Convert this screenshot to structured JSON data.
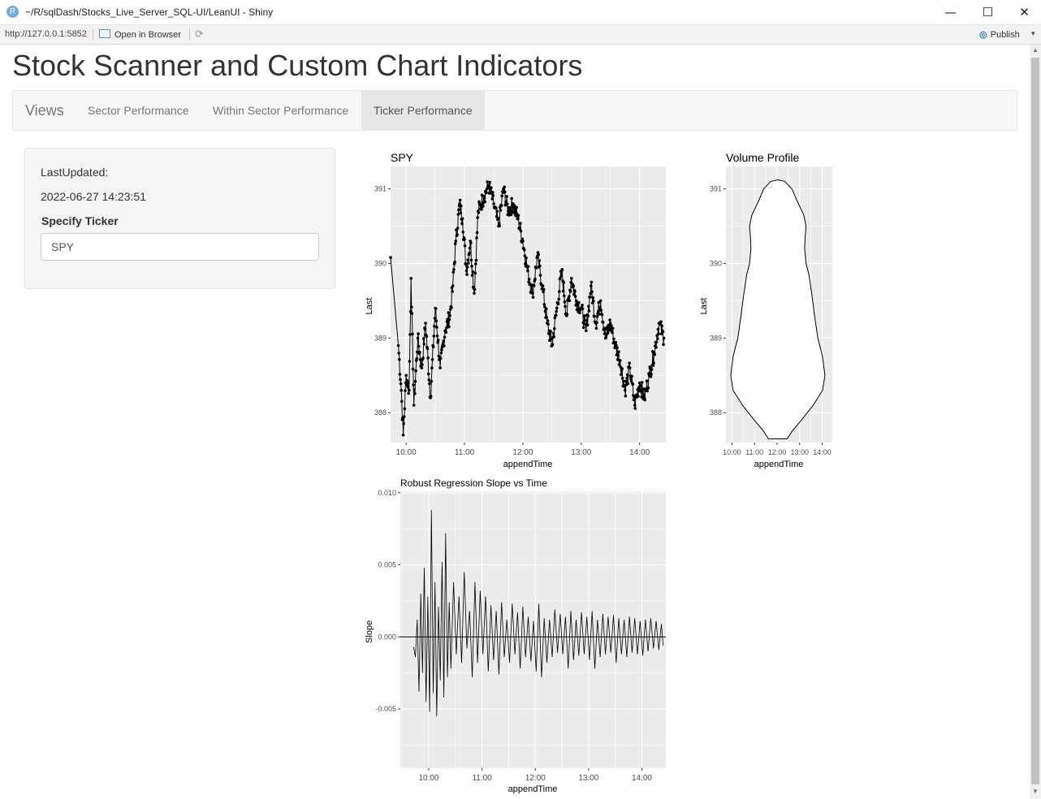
{
  "window": {
    "title": "~/R/sqlDash/Stocks_Live_Server_SQL-UI/LeanUI - Shiny",
    "app_icon": "R",
    "minimize": "—",
    "maximize": "☐",
    "close": "✕"
  },
  "toolbar": {
    "url": "http://127.0.0.1:5852",
    "open_in_browser": "Open in Browser",
    "refresh_icon": "⟳",
    "publish_icon": "◎",
    "publish": "Publish",
    "publish_caret": "▾"
  },
  "scrollbar": {
    "up": "▲",
    "down": "▼"
  },
  "page": {
    "title": "Stock Scanner and Custom Chart Indicators"
  },
  "nav": {
    "brand": "Views",
    "tabs": [
      "Sector Performance",
      "Within Sector Performance",
      "Ticker Performance"
    ],
    "active": "Ticker Performance"
  },
  "sidebar": {
    "last_updated_label": "LastUpdated:",
    "last_updated_value": "2022-06-27 14:23:51",
    "ticker_label": "Specify Ticker",
    "ticker_value": "SPY"
  },
  "chart_data": [
    {
      "type": "line",
      "title": "SPY",
      "xlabel": "appendTime",
      "ylabel": "Last",
      "xlim": [
        "09:44",
        "14:27"
      ],
      "ylim": [
        387.6,
        391.3
      ],
      "xticks": [
        "10:00",
        "11:00",
        "12:00",
        "13:00",
        "14:00"
      ],
      "yticks": [
        388,
        389,
        390,
        391
      ],
      "grid": true,
      "series": [
        {
          "points": [
            [
              "09:44",
              390.08
            ],
            [
              "09:52",
              388.9
            ],
            [
              "09:55",
              388.3
            ],
            [
              "09:57",
              387.7
            ],
            [
              "10:00",
              388.5
            ],
            [
              "10:03",
              388.3
            ],
            [
              "10:05",
              389.8
            ],
            [
              "10:08",
              388.1
            ],
            [
              "10:12",
              389.0
            ],
            [
              "10:16",
              388.6
            ],
            [
              "10:20",
              389.2
            ],
            [
              "10:25",
              388.2
            ],
            [
              "10:30",
              389.4
            ],
            [
              "10:35",
              388.6
            ],
            [
              "10:40",
              389.1
            ],
            [
              "10:45",
              389.3
            ],
            [
              "10:48",
              389.7
            ],
            [
              "10:51",
              390.3
            ],
            [
              "10:55",
              390.8
            ],
            [
              "10:58",
              390.6
            ],
            [
              "11:02",
              389.9
            ],
            [
              "11:06",
              390.3
            ],
            [
              "11:10",
              389.6
            ],
            [
              "11:14",
              390.7
            ],
            [
              "11:20",
              390.9
            ],
            [
              "11:25",
              391.05
            ],
            [
              "11:30",
              390.8
            ],
            [
              "11:35",
              390.5
            ],
            [
              "11:40",
              391.0
            ],
            [
              "11:45",
              390.7
            ],
            [
              "11:50",
              390.8
            ],
            [
              "11:55",
              390.6
            ],
            [
              "12:00",
              390.3
            ],
            [
              "12:05",
              389.9
            ],
            [
              "12:10",
              389.6
            ],
            [
              "12:15",
              390.1
            ],
            [
              "12:20",
              389.7
            ],
            [
              "12:25",
              389.2
            ],
            [
              "12:30",
              388.9
            ],
            [
              "12:35",
              389.4
            ],
            [
              "12:40",
              389.9
            ],
            [
              "12:45",
              389.3
            ],
            [
              "12:50",
              389.8
            ],
            [
              "12:55",
              389.5
            ],
            [
              "13:00",
              389.4
            ],
            [
              "13:05",
              389.1
            ],
            [
              "13:10",
              389.7
            ],
            [
              "13:15",
              389.2
            ],
            [
              "13:20",
              389.5
            ],
            [
              "13:25",
              389.0
            ],
            [
              "13:30",
              389.2
            ],
            [
              "13:35",
              388.9
            ],
            [
              "13:40",
              388.7
            ],
            [
              "13:45",
              388.3
            ],
            [
              "13:50",
              388.6
            ],
            [
              "13:55",
              388.1
            ],
            [
              "14:00",
              388.4
            ],
            [
              "14:05",
              388.2
            ],
            [
              "14:10",
              388.5
            ],
            [
              "14:15",
              388.8
            ],
            [
              "14:20",
              389.2
            ],
            [
              "14:25",
              389.0
            ]
          ]
        }
      ]
    },
    {
      "type": "area",
      "title": "Volume Profile",
      "xlabel": "appendTime",
      "ylabel": "Last",
      "xlim": [
        "09:44",
        "14:27"
      ],
      "ylim": [
        387.6,
        391.3
      ],
      "xticks": [
        "10:00",
        "11:00",
        "12:00",
        "13:00",
        "14:00"
      ],
      "yticks": [
        388,
        389,
        390,
        391
      ],
      "grid": true,
      "center": "12:02",
      "series": [
        {
          "halfwidth_points": [
            [
              387.65,
              0.2
            ],
            [
              387.75,
              0.3
            ],
            [
              387.9,
              0.5
            ],
            [
              388.1,
              0.75
            ],
            [
              388.3,
              0.95
            ],
            [
              388.5,
              1.0
            ],
            [
              388.75,
              0.95
            ],
            [
              389.0,
              0.85
            ],
            [
              389.3,
              0.78
            ],
            [
              389.6,
              0.72
            ],
            [
              389.85,
              0.66
            ],
            [
              390.0,
              0.6
            ],
            [
              390.2,
              0.57
            ],
            [
              390.35,
              0.58
            ],
            [
              390.5,
              0.6
            ],
            [
              390.65,
              0.55
            ],
            [
              390.85,
              0.4
            ],
            [
              391.0,
              0.3
            ],
            [
              391.1,
              0.15
            ],
            [
              391.12,
              0.0
            ]
          ]
        }
      ]
    },
    {
      "type": "line",
      "title": "Robust Regression Slope vs Time",
      "xlabel": "appendTime",
      "ylabel": "Slope",
      "xlim": [
        "09:28",
        "14:27"
      ],
      "ylim": [
        -0.0091,
        0.0101
      ],
      "xticks": [
        "10:00",
        "11:00",
        "12:00",
        "13:00",
        "14:00"
      ],
      "yticks": [
        -0.005,
        0.0,
        0.005,
        0.01
      ],
      "ytick_labels": [
        "-0.005",
        "0.000",
        "0.005",
        "0.010"
      ],
      "grid": true,
      "hline": 0,
      "series": [
        {
          "points": [
            [
              "09:43",
              -0.0007
            ],
            [
              "09:45",
              -0.0014
            ],
            [
              "09:47",
              0.0012
            ],
            [
              "09:49",
              -0.0038
            ],
            [
              "09:51",
              0.003
            ],
            [
              "09:53",
              -0.0025
            ],
            [
              "09:55",
              0.0048
            ],
            [
              "09:57",
              -0.0045
            ],
            [
              "09:59",
              0.0028
            ],
            [
              "10:01",
              -0.0052
            ],
            [
              "10:03",
              0.0088
            ],
            [
              "10:05",
              -0.0039
            ],
            [
              "10:07",
              0.0038
            ],
            [
              "10:09",
              -0.0055
            ],
            [
              "10:11",
              0.0021
            ],
            [
              "10:13",
              -0.003
            ],
            [
              "10:15",
              0.0052
            ],
            [
              "10:17",
              -0.0042
            ],
            [
              "10:19",
              0.0072
            ],
            [
              "10:21",
              -0.0028
            ],
            [
              "10:23",
              0.0024
            ],
            [
              "10:25",
              -0.0022
            ],
            [
              "10:28",
              0.0038
            ],
            [
              "10:31",
              -0.0012
            ],
            [
              "10:34",
              0.0028
            ],
            [
              "10:37",
              -0.0018
            ],
            [
              "10:40",
              0.0045
            ],
            [
              "10:43",
              -0.0008
            ],
            [
              "10:46",
              0.0018
            ],
            [
              "10:49",
              -0.0028
            ],
            [
              "10:52",
              0.0038
            ],
            [
              "10:55",
              -0.0018
            ],
            [
              "10:58",
              0.0032
            ],
            [
              "11:01",
              -0.0012
            ],
            [
              "11:04",
              0.0028
            ],
            [
              "11:07",
              -0.0024
            ],
            [
              "11:10",
              0.0022
            ],
            [
              "11:13",
              -0.0016
            ],
            [
              "11:16",
              0.0018
            ],
            [
              "11:19",
              -0.0026
            ],
            [
              "11:22",
              0.0024
            ],
            [
              "11:25",
              -0.0014
            ],
            [
              "11:28",
              0.0012
            ],
            [
              "11:31",
              -0.0018
            ],
            [
              "11:34",
              0.0023
            ],
            [
              "11:37",
              -0.0012
            ],
            [
              "11:40",
              0.0017
            ],
            [
              "11:43",
              -0.0022
            ],
            [
              "11:46",
              0.0021
            ],
            [
              "11:49",
              -0.0014
            ],
            [
              "11:52",
              0.0014
            ],
            [
              "11:55",
              -0.0017
            ],
            [
              "11:58",
              0.0011
            ],
            [
              "12:01",
              -0.0024
            ],
            [
              "12:04",
              0.0023
            ],
            [
              "12:07",
              -0.0028
            ],
            [
              "12:10",
              0.0013
            ],
            [
              "12:13",
              -0.0018
            ],
            [
              "12:16",
              0.0012
            ],
            [
              "12:19",
              -0.0014
            ],
            [
              "12:22",
              0.0019
            ],
            [
              "12:25",
              -0.0011
            ],
            [
              "12:28",
              0.0016
            ],
            [
              "12:31",
              -0.0012
            ],
            [
              "12:34",
              0.0014
            ],
            [
              "12:37",
              -0.0022
            ],
            [
              "12:40",
              0.0018
            ],
            [
              "12:43",
              -0.0016
            ],
            [
              "12:46",
              0.0012
            ],
            [
              "12:49",
              -0.0013
            ],
            [
              "12:52",
              0.0017
            ],
            [
              "12:55",
              -0.0012
            ],
            [
              "12:58",
              0.0014
            ],
            [
              "13:01",
              -0.0016
            ],
            [
              "13:04",
              0.0018
            ],
            [
              "13:07",
              -0.0022
            ],
            [
              "13:10",
              0.0012
            ],
            [
              "13:13",
              -0.0014
            ],
            [
              "13:16",
              0.0016
            ],
            [
              "13:19",
              -0.0012
            ],
            [
              "13:22",
              0.0014
            ],
            [
              "13:25",
              -0.0011
            ],
            [
              "13:28",
              0.0015
            ],
            [
              "13:31",
              -0.0018
            ],
            [
              "13:34",
              0.0013
            ],
            [
              "13:37",
              -0.0012
            ],
            [
              "13:40",
              0.0012
            ],
            [
              "13:43",
              -0.0014
            ],
            [
              "13:46",
              0.0014
            ],
            [
              "13:49",
              -0.0011
            ],
            [
              "13:52",
              0.0013
            ],
            [
              "13:55",
              -0.0012
            ],
            [
              "13:58",
              0.0011
            ],
            [
              "14:01",
              -0.0013
            ],
            [
              "14:04",
              0.0012
            ],
            [
              "14:07",
              -0.001
            ],
            [
              "14:10",
              0.0013
            ],
            [
              "14:13",
              -0.0008
            ],
            [
              "14:16",
              0.0011
            ],
            [
              "14:19",
              -0.0009
            ],
            [
              "14:22",
              0.0009
            ],
            [
              "14:24",
              -0.0006
            ]
          ]
        }
      ]
    }
  ]
}
